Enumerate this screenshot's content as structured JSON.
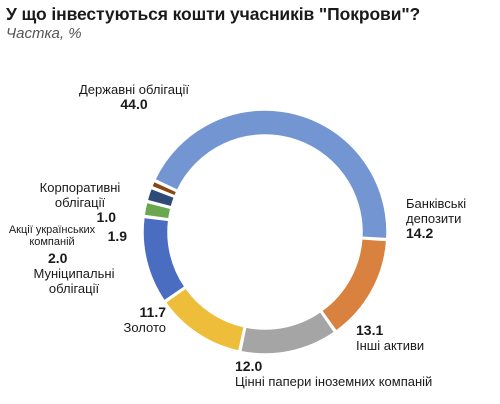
{
  "chart_data": {
    "type": "pie",
    "donut": true,
    "title": "У що інвестуються кошти учасників \"Покрови\"?",
    "subtitle": "Частка, %",
    "unit": "%",
    "slices": [
      {
        "label": "Державні облігації",
        "value": 44.0,
        "value_text": "44.0",
        "color": "#7396d3"
      },
      {
        "label": "Банківські депозити",
        "value": 14.2,
        "value_text": "14.2",
        "color": "#d9823f"
      },
      {
        "label": "Інші активи",
        "value": 13.1,
        "value_text": "13.1",
        "color": "#a5a5a5"
      },
      {
        "label": "Цінні папери іноземних компаній",
        "value": 12.0,
        "value_text": "12.0",
        "color": "#eebe3a"
      },
      {
        "label": "Золото",
        "value": 11.7,
        "value_text": "11.7",
        "color": "#4a6dc2"
      },
      {
        "label": "Муніципальні облігації",
        "value": 2.0,
        "value_text": "2.0",
        "color": "#6aa84f"
      },
      {
        "label": "Акції українських компаній",
        "value": 1.9,
        "value_text": "1.9",
        "color": "#2f4a78"
      },
      {
        "label": "Корпоративні облігації",
        "value": 1.0,
        "value_text": "1.0",
        "color": "#8b4513"
      }
    ]
  }
}
